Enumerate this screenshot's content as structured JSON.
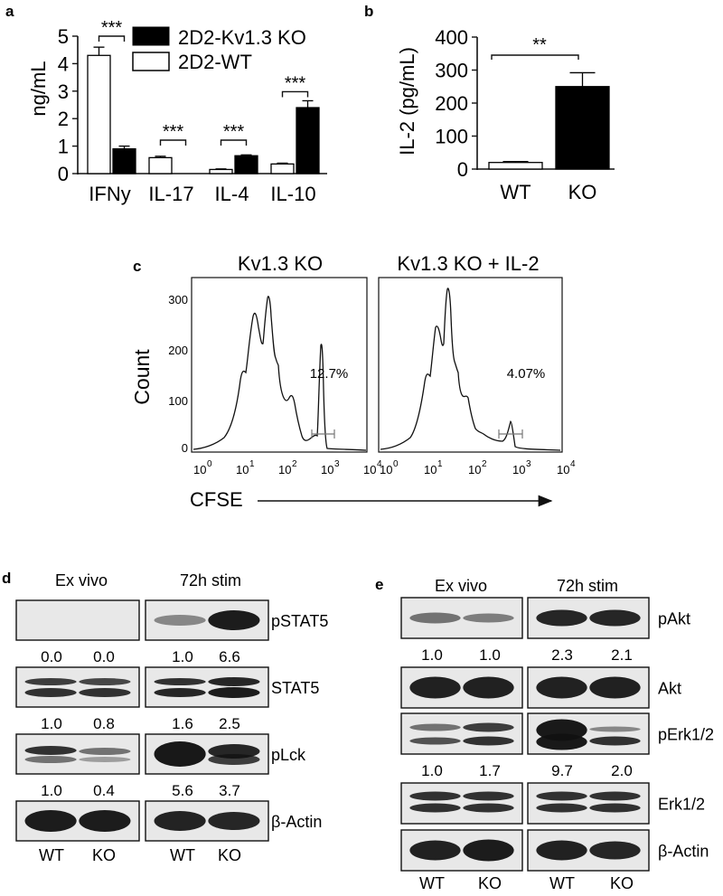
{
  "panels": {
    "a": {
      "letter": "a",
      "ylabel": "ng/mL",
      "legend": [
        "2D2-Kv1.3 KO",
        "2D2-WT"
      ],
      "colors": {
        "wt": "#ffffff",
        "ko": "#000000"
      },
      "significance": [
        "***",
        "***",
        "***",
        "***"
      ]
    },
    "b": {
      "letter": "b",
      "ylabel": "IL-2 (pg/mL)",
      "significance": "**"
    },
    "c": {
      "letter": "c",
      "titles": [
        "Kv1.3 KO",
        "Kv1.3 KO + IL-2"
      ],
      "ylabel": "Count",
      "xlabel": "CFSE",
      "percents": [
        "12.7%",
        "4.07%"
      ],
      "y_ticks": [
        "0",
        "100",
        "200",
        "300"
      ],
      "x_ticks": [
        "10",
        "10",
        "10",
        "10",
        "10"
      ],
      "x_tick_exps": [
        "0",
        "1",
        "2",
        "3",
        "4"
      ]
    },
    "d": {
      "letter": "d",
      "headers": [
        "Ex vivo",
        "72h stim"
      ],
      "rows": [
        {
          "label": "pSTAT5",
          "quant": [
            "0.0",
            "0.0",
            "1.0",
            "6.6"
          ]
        },
        {
          "label": "STAT5",
          "quant": [
            "1.0",
            "0.8",
            "1.6",
            "2.5"
          ]
        },
        {
          "label": "pLck",
          "quant": [
            "1.0",
            "0.4",
            "5.6",
            "3.7"
          ]
        },
        {
          "label": "β-Actin",
          "quant": []
        }
      ],
      "lanes": [
        "WT",
        "KO",
        "WT",
        "KO"
      ]
    },
    "e": {
      "letter": "e",
      "headers": [
        "Ex vivo",
        "72h stim"
      ],
      "rows": [
        {
          "label": "pAkt",
          "quant": [
            "1.0",
            "1.0",
            "2.3",
            "2.1"
          ]
        },
        {
          "label": "Akt",
          "quant": []
        },
        {
          "label": "pErk1/2",
          "quant": [
            "1.0",
            "1.7",
            "9.7",
            "2.0"
          ]
        },
        {
          "label": "Erk1/2",
          "quant": []
        },
        {
          "label": "β-Actin",
          "quant": []
        }
      ],
      "lanes": [
        "WT",
        "KO",
        "WT",
        "KO"
      ]
    }
  },
  "chart_data": [
    {
      "type": "bar",
      "categories": [
        "IFNy",
        "IL-17",
        "IL-4",
        "IL-10"
      ],
      "series": [
        {
          "name": "2D2-WT",
          "values": [
            4.3,
            0.58,
            0.15,
            0.35
          ],
          "errors": [
            0.3,
            0.05,
            0.02,
            0.03
          ]
        },
        {
          "name": "2D2-Kv1.3 KO",
          "values": [
            0.9,
            0.0,
            0.65,
            2.4
          ],
          "errors": [
            0.1,
            0.0,
            0.03,
            0.25
          ]
        }
      ],
      "title": "",
      "ylabel": "ng/mL",
      "ylim": [
        0,
        5
      ],
      "yticks": [
        0,
        1,
        2,
        3,
        4,
        5
      ],
      "legend": "top-right",
      "grid": false
    },
    {
      "type": "bar",
      "categories": [
        "WT",
        "KO"
      ],
      "series": [
        {
          "values": [
            20,
            250
          ],
          "errors": [
            3,
            42
          ]
        }
      ],
      "title": "",
      "ylabel": "IL-2 (pg/mL)",
      "ylim": [
        0,
        400
      ],
      "yticks": [
        0,
        100,
        200,
        300,
        400
      ],
      "grid": false
    }
  ]
}
